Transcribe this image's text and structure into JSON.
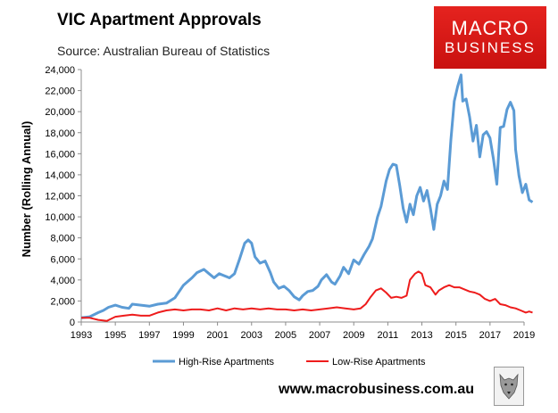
{
  "header": {
    "title": "VIC Apartment Approvals",
    "subtitle": "Source: Australian Bureau of Statistics"
  },
  "logo": {
    "line1": "MACRO",
    "line2": "BUSINESS",
    "bg_color": "#d81b18",
    "icon": "wolf-icon"
  },
  "footer": {
    "url": "www.macrobusiness.com.au"
  },
  "chart_data": {
    "type": "line",
    "ylabel": "Number (Rolling Annual)",
    "xlabel": "",
    "xlim": [
      1993,
      2019
    ],
    "ylim": [
      0,
      24000
    ],
    "x_ticks": [
      "1993",
      "1995",
      "1997",
      "1999",
      "2001",
      "2003",
      "2005",
      "2007",
      "2009",
      "2011",
      "2013",
      "2015",
      "2017",
      "2019"
    ],
    "y_ticks": [
      "0",
      "2,000",
      "4,000",
      "6,000",
      "8,000",
      "10,000",
      "12,000",
      "14,000",
      "16,000",
      "18,000",
      "20,000",
      "22,000",
      "24,000"
    ],
    "grid": false,
    "legend": "bottom",
    "series": [
      {
        "name": "High-Rise Apartments",
        "color": "#5b9bd5",
        "points": [
          [
            1993.0,
            400
          ],
          [
            1993.5,
            500
          ],
          [
            1994.0,
            900
          ],
          [
            1994.3,
            1100
          ],
          [
            1994.6,
            1400
          ],
          [
            1995.0,
            1600
          ],
          [
            1995.4,
            1400
          ],
          [
            1995.8,
            1300
          ],
          [
            1996.0,
            1700
          ],
          [
            1996.5,
            1600
          ],
          [
            1997.0,
            1500
          ],
          [
            1997.5,
            1700
          ],
          [
            1998.0,
            1800
          ],
          [
            1998.5,
            2300
          ],
          [
            1999.0,
            3500
          ],
          [
            1999.5,
            4200
          ],
          [
            1999.8,
            4700
          ],
          [
            2000.2,
            5000
          ],
          [
            2000.5,
            4600
          ],
          [
            2000.8,
            4200
          ],
          [
            2001.1,
            4600
          ],
          [
            2001.4,
            4400
          ],
          [
            2001.7,
            4200
          ],
          [
            2002.0,
            4600
          ],
          [
            2002.3,
            6000
          ],
          [
            2002.6,
            7500
          ],
          [
            2002.8,
            7800
          ],
          [
            2003.0,
            7500
          ],
          [
            2003.2,
            6200
          ],
          [
            2003.5,
            5600
          ],
          [
            2003.8,
            5800
          ],
          [
            2004.1,
            4700
          ],
          [
            2004.3,
            3800
          ],
          [
            2004.6,
            3200
          ],
          [
            2004.9,
            3400
          ],
          [
            2005.2,
            3000
          ],
          [
            2005.5,
            2400
          ],
          [
            2005.8,
            2100
          ],
          [
            2006.0,
            2500
          ],
          [
            2006.3,
            2900
          ],
          [
            2006.6,
            3000
          ],
          [
            2006.9,
            3400
          ],
          [
            2007.1,
            4000
          ],
          [
            2007.4,
            4500
          ],
          [
            2007.7,
            3800
          ],
          [
            2007.9,
            3600
          ],
          [
            2008.2,
            4400
          ],
          [
            2008.4,
            5200
          ],
          [
            2008.7,
            4600
          ],
          [
            2009.0,
            5900
          ],
          [
            2009.3,
            5500
          ],
          [
            2009.6,
            6400
          ],
          [
            2009.9,
            7200
          ],
          [
            2010.1,
            7900
          ],
          [
            2010.4,
            10000
          ],
          [
            2010.6,
            11000
          ],
          [
            2010.9,
            13400
          ],
          [
            2011.1,
            14500
          ],
          [
            2011.3,
            15000
          ],
          [
            2011.5,
            14900
          ],
          [
            2011.7,
            13000
          ],
          [
            2011.9,
            10800
          ],
          [
            2012.1,
            9500
          ],
          [
            2012.3,
            11200
          ],
          [
            2012.5,
            10200
          ],
          [
            2012.7,
            12000
          ],
          [
            2012.9,
            12800
          ],
          [
            2013.1,
            11500
          ],
          [
            2013.3,
            12500
          ],
          [
            2013.5,
            10800
          ],
          [
            2013.7,
            8800
          ],
          [
            2013.9,
            11200
          ],
          [
            2014.1,
            12000
          ],
          [
            2014.3,
            13400
          ],
          [
            2014.5,
            12600
          ],
          [
            2014.7,
            17300
          ],
          [
            2014.9,
            21000
          ],
          [
            2015.1,
            22400
          ],
          [
            2015.3,
            23500
          ],
          [
            2015.4,
            21000
          ],
          [
            2015.6,
            21200
          ],
          [
            2015.8,
            19500
          ],
          [
            2016.0,
            17200
          ],
          [
            2016.2,
            18700
          ],
          [
            2016.4,
            15700
          ],
          [
            2016.6,
            17800
          ],
          [
            2016.8,
            18100
          ],
          [
            2017.0,
            17500
          ],
          [
            2017.2,
            15500
          ],
          [
            2017.4,
            13100
          ],
          [
            2017.6,
            18500
          ],
          [
            2017.8,
            18600
          ],
          [
            2018.0,
            20200
          ],
          [
            2018.2,
            20900
          ],
          [
            2018.4,
            20100
          ],
          [
            2018.5,
            16400
          ],
          [
            2018.7,
            13900
          ],
          [
            2018.9,
            12300
          ],
          [
            2019.1,
            13100
          ],
          [
            2019.3,
            11600
          ],
          [
            2019.5,
            11400
          ]
        ]
      },
      {
        "name": "Low-Rise Apartments",
        "color": "#ee1c1c",
        "points": [
          [
            1993.0,
            400
          ],
          [
            1993.5,
            400
          ],
          [
            1994.0,
            200
          ],
          [
            1994.5,
            100
          ],
          [
            1995.0,
            500
          ],
          [
            1995.5,
            600
          ],
          [
            1996.0,
            700
          ],
          [
            1996.5,
            600
          ],
          [
            1997.0,
            600
          ],
          [
            1997.5,
            900
          ],
          [
            1998.0,
            1100
          ],
          [
            1998.5,
            1200
          ],
          [
            1999.0,
            1100
          ],
          [
            1999.5,
            1200
          ],
          [
            2000.0,
            1200
          ],
          [
            2000.5,
            1100
          ],
          [
            2001.0,
            1300
          ],
          [
            2001.5,
            1100
          ],
          [
            2002.0,
            1300
          ],
          [
            2002.5,
            1200
          ],
          [
            2003.0,
            1300
          ],
          [
            2003.5,
            1200
          ],
          [
            2004.0,
            1300
          ],
          [
            2004.5,
            1200
          ],
          [
            2005.0,
            1200
          ],
          [
            2005.5,
            1100
          ],
          [
            2006.0,
            1200
          ],
          [
            2006.5,
            1100
          ],
          [
            2007.0,
            1200
          ],
          [
            2007.5,
            1300
          ],
          [
            2008.0,
            1400
          ],
          [
            2008.5,
            1300
          ],
          [
            2009.0,
            1200
          ],
          [
            2009.4,
            1300
          ],
          [
            2009.7,
            1700
          ],
          [
            2010.0,
            2400
          ],
          [
            2010.3,
            3000
          ],
          [
            2010.6,
            3200
          ],
          [
            2010.9,
            2800
          ],
          [
            2011.2,
            2300
          ],
          [
            2011.5,
            2400
          ],
          [
            2011.8,
            2300
          ],
          [
            2012.1,
            2500
          ],
          [
            2012.3,
            4000
          ],
          [
            2012.6,
            4600
          ],
          [
            2012.8,
            4800
          ],
          [
            2013.0,
            4600
          ],
          [
            2013.2,
            3500
          ],
          [
            2013.5,
            3300
          ],
          [
            2013.8,
            2600
          ],
          [
            2014.0,
            3000
          ],
          [
            2014.3,
            3300
          ],
          [
            2014.6,
            3500
          ],
          [
            2014.9,
            3300
          ],
          [
            2015.2,
            3300
          ],
          [
            2015.5,
            3100
          ],
          [
            2015.8,
            2900
          ],
          [
            2016.1,
            2800
          ],
          [
            2016.4,
            2600
          ],
          [
            2016.7,
            2200
          ],
          [
            2017.0,
            2000
          ],
          [
            2017.3,
            2200
          ],
          [
            2017.6,
            1700
          ],
          [
            2017.9,
            1600
          ],
          [
            2018.2,
            1400
          ],
          [
            2018.5,
            1300
          ],
          [
            2018.8,
            1100
          ],
          [
            2019.1,
            900
          ],
          [
            2019.3,
            1000
          ],
          [
            2019.5,
            900
          ]
        ]
      }
    ]
  }
}
